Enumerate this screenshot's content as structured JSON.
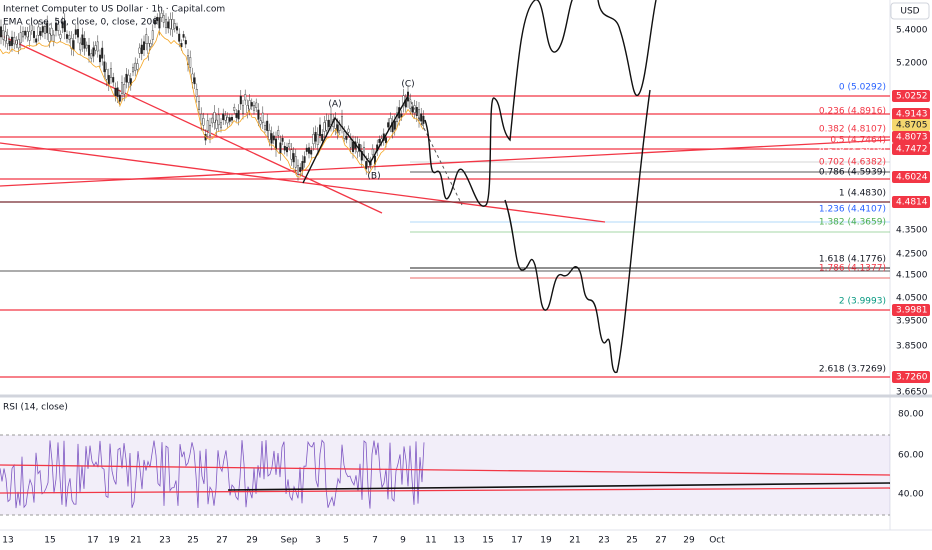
{
  "header": {
    "title": "Internet Computer to US Dollar · 1h · Capital.com",
    "indicator": "EMA close, 50, close, 0, close, 200",
    "currency": "USD"
  },
  "price_axis": [
    "5.4000",
    "5.2000",
    "4.3500",
    "4.2500",
    "4.1500",
    "4.0500",
    "3.9500",
    "3.8500",
    "3.6650"
  ],
  "price_tags": [
    "5.0252",
    "4.9143",
    "4.8705",
    "4.8073",
    "4.7472",
    "4.6024",
    "4.4814",
    "3.9981",
    "3.7260"
  ],
  "fib_levels": [
    "0 (5.0292)",
    "0.236 (4.8916)",
    "0.382 (4.8107)",
    "0.5 (4.7464)",
    "0.618 (4.6818)",
    "0.702 (4.6382)",
    "0.786 (4.5939)",
    "1 (4.4830)",
    "1.236 (4.4107)",
    "1.382 (4.3659)",
    "1.618 (4.1776)",
    "1.786 (4.1377)",
    "2 (3.9993)",
    "2.618 (3.7269)"
  ],
  "wave_labels": [
    "(A)",
    "(B)",
    "(C)"
  ],
  "rsi": {
    "title": "RSI (14, close)",
    "axis": [
      "80.00",
      "60.00",
      "40.00"
    ]
  },
  "time_axis": [
    "13",
    "15",
    "17",
    "19",
    "21",
    "23",
    "25",
    "27",
    "29",
    "Sep",
    "3",
    "5",
    "7",
    "9",
    "11",
    "13",
    "15",
    "17",
    "19",
    "21",
    "23",
    "25",
    "27",
    "29",
    "Oct"
  ]
}
